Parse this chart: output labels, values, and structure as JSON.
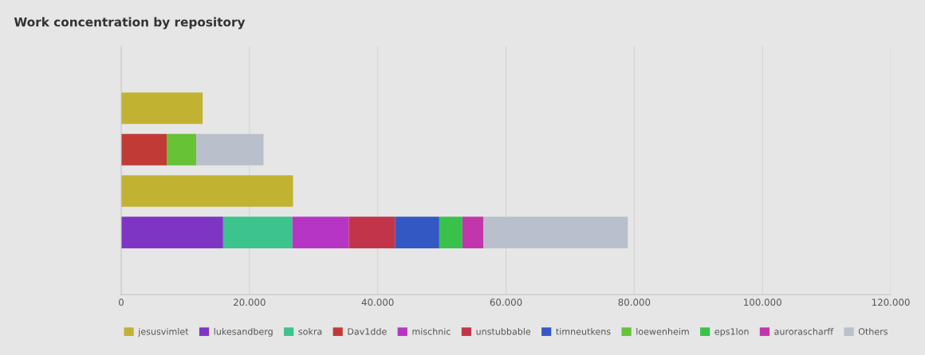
{
  "chart_data": {
    "type": "bar",
    "orientation": "horizontal",
    "stacked": true,
    "title": "Work concentration by repository",
    "categories": [
      null,
      null,
      null,
      null,
      null,
      null
    ],
    "series": [
      {
        "name": "jesusvimlet",
        "color": "#c2b232",
        "values": [
          null,
          12700,
          null,
          26800,
          null,
          null
        ]
      },
      {
        "name": "lukesandberg",
        "color": "#7f35c4",
        "values": [
          null,
          null,
          null,
          null,
          15900,
          null
        ]
      },
      {
        "name": "sokra",
        "color": "#3cc38e",
        "values": [
          null,
          null,
          null,
          null,
          10800,
          null
        ]
      },
      {
        "name": "Dav1dde",
        "color": "#c23a36",
        "values": [
          null,
          null,
          7100,
          null,
          null,
          null
        ]
      },
      {
        "name": "mischnic",
        "color": "#b735c4",
        "values": [
          null,
          null,
          null,
          null,
          8800,
          null
        ]
      },
      {
        "name": "unstubbable",
        "color": "#c2344a",
        "values": [
          null,
          null,
          null,
          null,
          7200,
          null
        ]
      },
      {
        "name": "timneutkens",
        "color": "#3358c4",
        "values": [
          null,
          null,
          null,
          null,
          6900,
          null
        ]
      },
      {
        "name": "loewenheim",
        "color": "#67c236",
        "values": [
          null,
          null,
          4600,
          null,
          null,
          null
        ]
      },
      {
        "name": "eps1lon",
        "color": "#38c24b",
        "values": [
          null,
          null,
          null,
          null,
          3600,
          null
        ]
      },
      {
        "name": "aurorascharff",
        "color": "#c236ab",
        "values": [
          null,
          null,
          null,
          null,
          3300,
          null
        ]
      },
      {
        "name": "Others",
        "color": "#b9c0cb",
        "values": [
          null,
          null,
          10500,
          null,
          22500,
          null
        ]
      }
    ],
    "xlim": [
      0,
      120000
    ],
    "xticks": [
      {
        "value": 0,
        "label": "0"
      },
      {
        "value": 20000,
        "label": "20.000"
      },
      {
        "value": 40000,
        "label": "40.000"
      },
      {
        "value": 60000,
        "label": "60.000"
      },
      {
        "value": 80000,
        "label": "80.000"
      },
      {
        "value": 100000,
        "label": "100.000"
      },
      {
        "value": 120000,
        "label": "120.000"
      }
    ],
    "grid": "x",
    "legend": "bottom"
  }
}
